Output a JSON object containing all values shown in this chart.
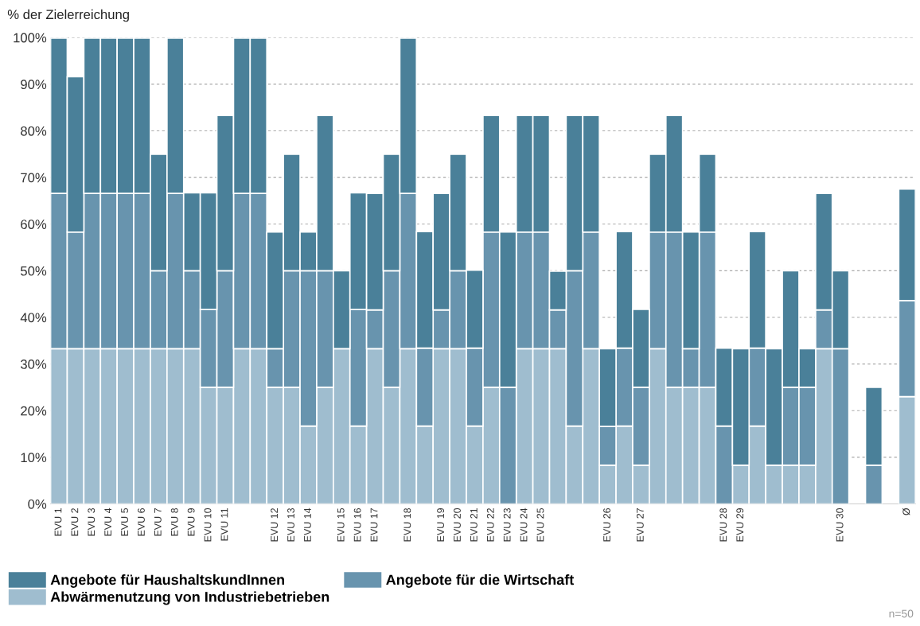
{
  "chart_data": {
    "type": "bar",
    "stacked": true,
    "ylabel": "% der Zielerreichung",
    "categories": [
      "EVU 1",
      "EVU 2",
      "EVU 3",
      "EVU 4",
      "EVU 5",
      "EVU 6",
      "EVU 7",
      "EVU 8",
      "EVU 9",
      "EVU 10",
      "EVU 11",
      null,
      null,
      "EVU 12",
      "EVU 13",
      "EVU 14",
      null,
      "EVU 15",
      "EVU 16",
      "EVU 17",
      null,
      "EVU 18",
      null,
      "EVU 19",
      "EVU 20",
      "EVU 21",
      "EVU 22",
      "EVU 23",
      "EVU 24",
      "EVU 25",
      null,
      null,
      null,
      "EVU 26",
      null,
      "EVU 27",
      null,
      null,
      null,
      null,
      "EVU 28",
      "EVU 29",
      null,
      null,
      null,
      null,
      null,
      "EVU 30",
      null,
      null,
      null,
      "Ø"
    ],
    "series": [
      {
        "name": "Abwärmenutzung von Industriebetrieben",
        "color": "#9fbdcf",
        "values": [
          33.3,
          33.3,
          33.3,
          33.3,
          33.3,
          33.3,
          33.3,
          33.3,
          33.3,
          25,
          25,
          33.3,
          33.3,
          25,
          25,
          16.7,
          25,
          33.3,
          16.7,
          33.3,
          25,
          33.3,
          16.7,
          33.3,
          33.3,
          16.7,
          25,
          0,
          33.3,
          33.3,
          33.3,
          16.7,
          33.3,
          8.3,
          16.7,
          8.3,
          33.3,
          25,
          25,
          25,
          0,
          8.3,
          16.7,
          8.3,
          8.3,
          8.3,
          33.3,
          0,
          0,
          0,
          0,
          23
        ]
      },
      {
        "name": "Angebote für die Wirtschaft",
        "color": "#6894ae",
        "values": [
          33.3,
          25,
          33.3,
          33.3,
          33.3,
          33.3,
          16.7,
          33.3,
          16.7,
          16.7,
          25,
          33.3,
          33.3,
          8.3,
          25,
          33.3,
          25,
          0,
          25,
          8.3,
          25,
          33.3,
          16.7,
          8.3,
          16.7,
          16.7,
          33.3,
          25,
          25,
          25,
          8.3,
          33.3,
          25,
          8.3,
          16.7,
          16.7,
          25,
          33.3,
          8.3,
          33.3,
          16.7,
          0,
          16.7,
          0,
          16.7,
          16.7,
          8.3,
          33.3,
          0,
          8.3,
          0,
          20.6
        ]
      },
      {
        "name": "Angebote für HaushaltskundInnen",
        "color": "#4a8099",
        "values": [
          33.3,
          33.3,
          33.3,
          33.3,
          33.3,
          33.3,
          25,
          33.3,
          16.7,
          25,
          33.3,
          33.3,
          33.3,
          25,
          25,
          8.3,
          33.3,
          16.7,
          25,
          25,
          25,
          33.3,
          25,
          25,
          25,
          16.7,
          25,
          33.3,
          25,
          25,
          8.3,
          33.3,
          25,
          16.7,
          25,
          16.7,
          16.7,
          25,
          25,
          16.7,
          16.7,
          25,
          25,
          25,
          25,
          8.3,
          25,
          16.7,
          0,
          16.7,
          0,
          23.9
        ]
      }
    ],
    "ylim": [
      0,
      100
    ],
    "yticks": [
      {
        "value": 0,
        "label": "0%"
      },
      {
        "value": 10,
        "label": "10%"
      },
      {
        "value": 20,
        "label": "20%"
      },
      {
        "value": 30,
        "label": "30%"
      },
      {
        "value": 40,
        "label": "40%"
      },
      {
        "value": 50,
        "label": "50%"
      },
      {
        "value": 60,
        "label": "60%"
      },
      {
        "value": 70,
        "label": "70%"
      },
      {
        "value": 80,
        "label": "80%"
      },
      {
        "value": 90,
        "label": "90%"
      },
      {
        "value": 100,
        "label": "100%"
      }
    ],
    "grid": "y",
    "legend": "bottom left",
    "annotations": [
      "n=50"
    ]
  }
}
